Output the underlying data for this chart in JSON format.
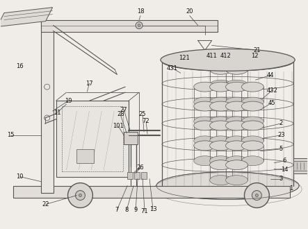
{
  "bg_color": "#f0ede8",
  "line_color": "#555555",
  "label_color": "#111111",
  "lw": 0.7
}
